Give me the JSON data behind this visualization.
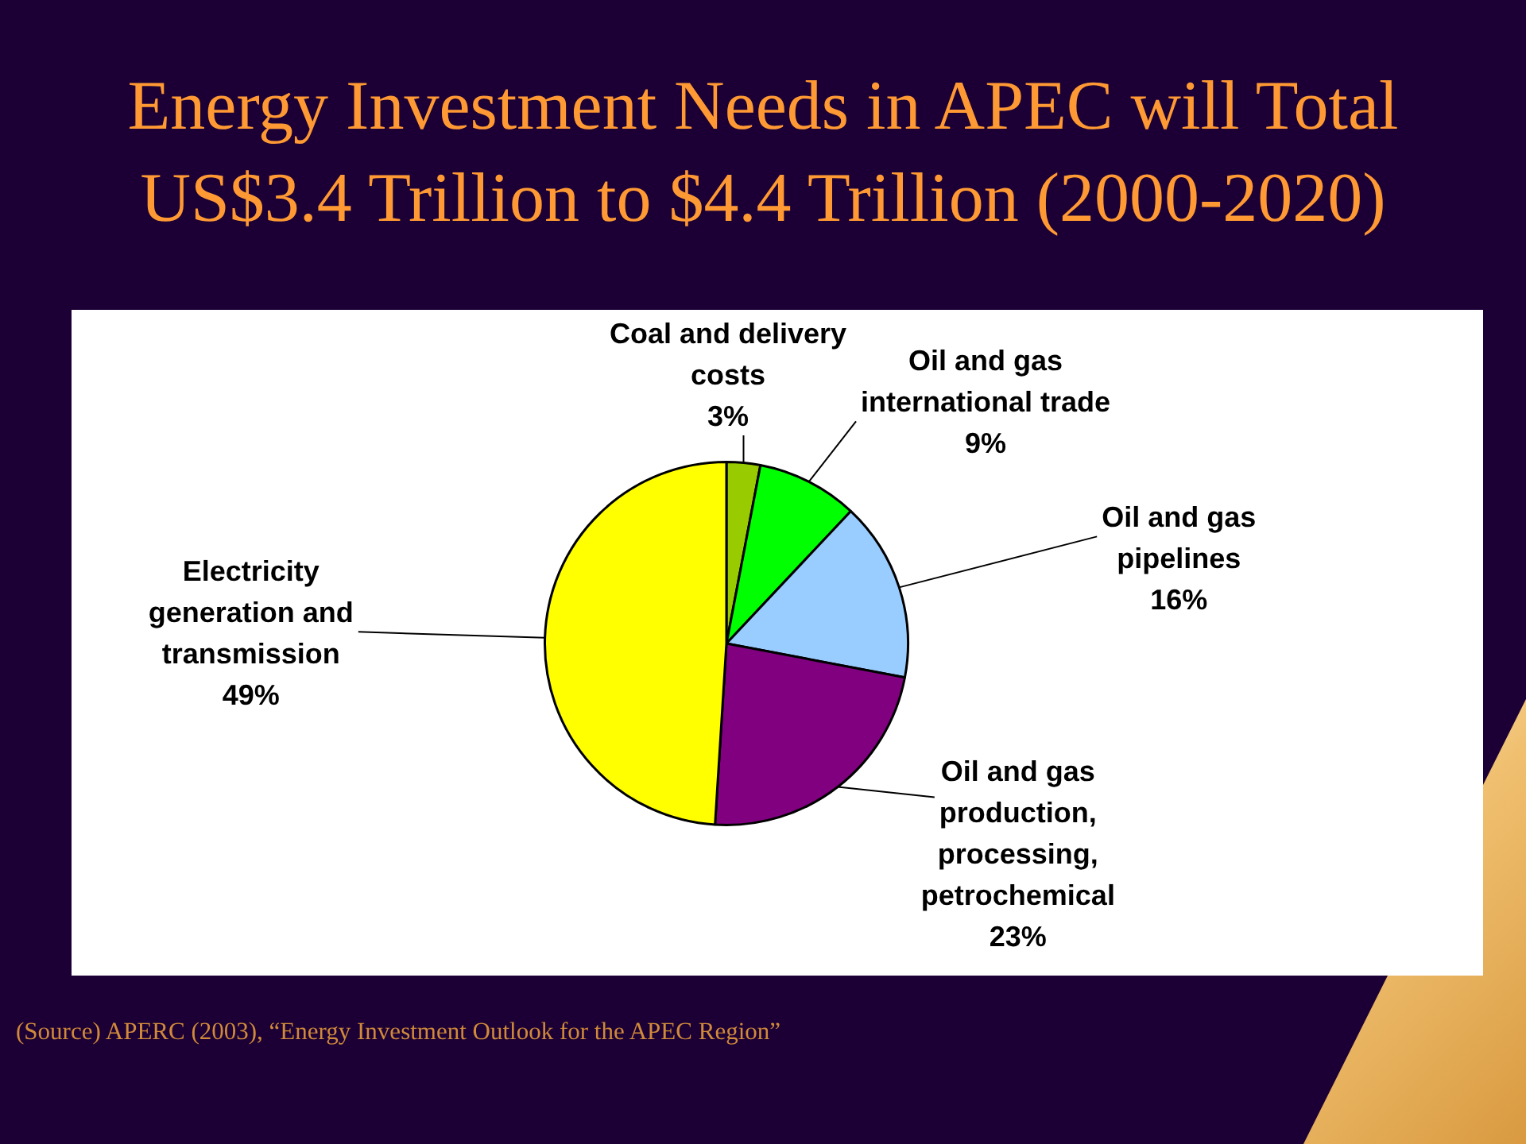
{
  "chart_data": {
    "type": "pie",
    "title": "Energy Investment Needs in APEC will Total US$3.4 Trillion to $4.4 Trillion (2000-2020)",
    "categories": [
      "Coal and delivery costs",
      "Oil and gas international trade",
      "Oil and gas pipelines",
      "Oil and gas production, processing, petrochemical",
      "Electricity generation and transmission"
    ],
    "values": [
      3,
      9,
      16,
      23,
      49
    ],
    "value_labels": [
      "3%",
      "9%",
      "16%",
      "23%",
      "49%"
    ],
    "colors": [
      "#99cc00",
      "#00ff00",
      "#99ccff",
      "#800080",
      "#ffff00"
    ],
    "annotations": [
      "(Source) APERC (2003), “Energy Investment Outlook for the APEC Region”"
    ]
  }
}
